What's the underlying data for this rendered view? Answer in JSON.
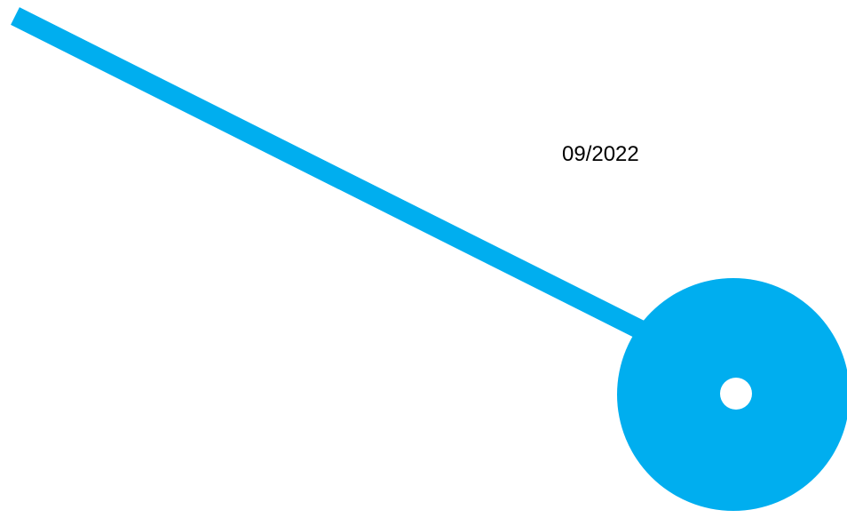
{
  "slide": {
    "date_text": "09/2022",
    "accent_color": "#00AEEF",
    "hole_color": "#FFFFFF"
  }
}
